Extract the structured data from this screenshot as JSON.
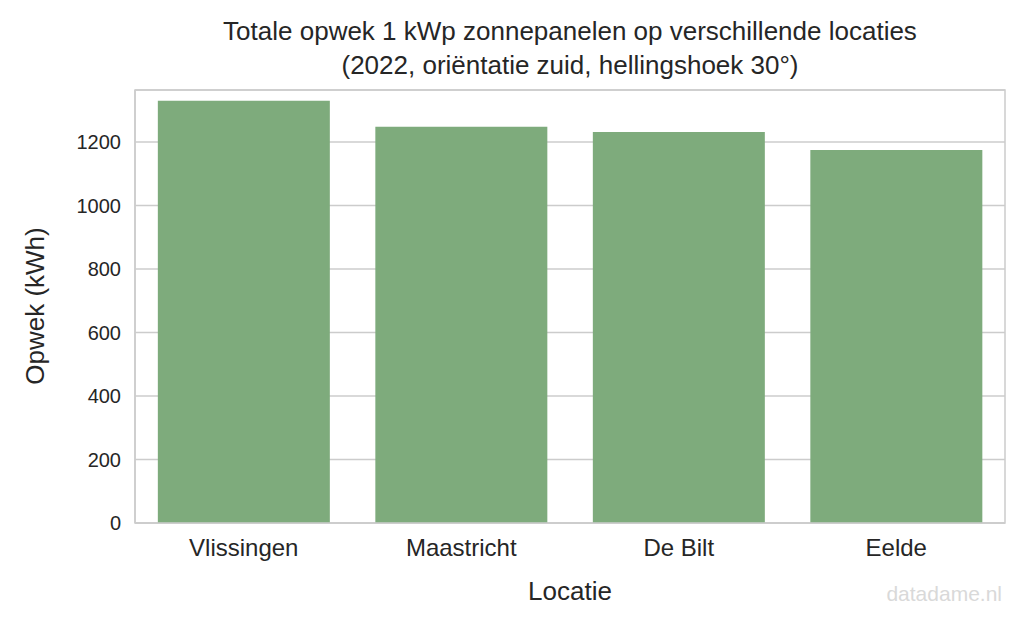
{
  "chart_data": {
    "type": "bar",
    "title": "Totale opwek 1 kWp zonnepanelen op verschillende locaties",
    "subtitle": "(2022, oriëntatie zuid, hellingshoek 30°)",
    "x_label": "Locatie",
    "y_label": "Opwek (kWh)",
    "categories": [
      "Vlissingen",
      "Maastricht",
      "De Bilt",
      "Eelde"
    ],
    "values": [
      1330,
      1248,
      1232,
      1175
    ],
    "color": "#7eab7c",
    "ylim": [
      0,
      1364
    ],
    "yticks": [
      0,
      200,
      400,
      600,
      800,
      1000,
      1200
    ],
    "grid": true,
    "watermark": "datadame.nl"
  }
}
